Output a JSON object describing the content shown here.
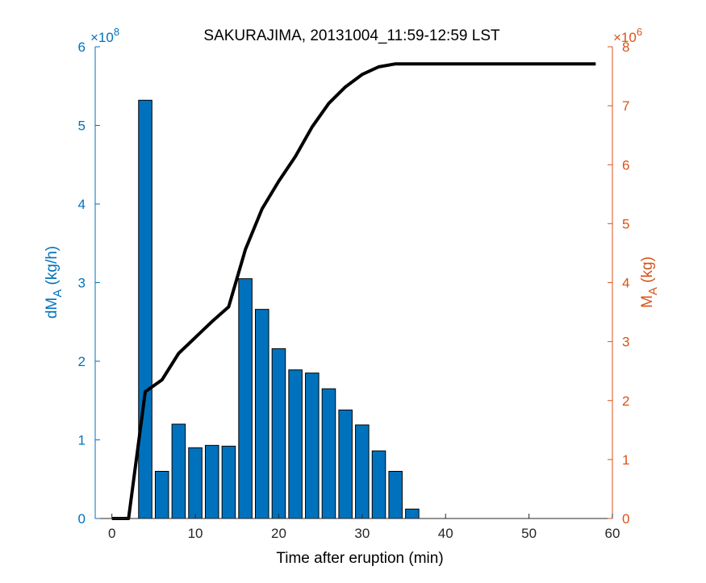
{
  "chart_data": {
    "type": "bar",
    "title": "SAKURAJIMA, 20131004_11:59-12:59 LST",
    "xlabel": "Time after eruption (min)",
    "ylabel_left": {
      "base": "dM",
      "sub": "A",
      "rest": " (kg/h)"
    },
    "ylabel_right": {
      "base": "M",
      "sub": "A",
      "rest": " (kg)"
    },
    "left_exponent": {
      "base": "×10",
      "exp": "8"
    },
    "right_exponent": {
      "base": "×10",
      "exp": "6"
    },
    "xlim": [
      -2,
      60
    ],
    "ylim_left": [
      0,
      6
    ],
    "ylim_right": [
      0,
      8
    ],
    "xticks": [
      0,
      10,
      20,
      30,
      40,
      50,
      60
    ],
    "yticks_left": [
      0,
      1,
      2,
      3,
      4,
      5,
      6
    ],
    "yticks_right": [
      0,
      1,
      2,
      3,
      4,
      5,
      6,
      7,
      8
    ],
    "colors": {
      "bars": "#0072BD",
      "bar_edge": "#000000",
      "line": "#000000",
      "left_axis": "#0072BD",
      "right_axis": "#D95319"
    },
    "bars": {
      "x": [
        0,
        2,
        4,
        6,
        8,
        10,
        12,
        14,
        16,
        18,
        20,
        22,
        24,
        26,
        28,
        30,
        32,
        34,
        36
      ],
      "values": [
        0,
        0,
        5.32,
        0.6,
        1.2,
        0.9,
        0.93,
        0.92,
        3.05,
        2.66,
        2.16,
        1.89,
        1.85,
        1.65,
        1.38,
        1.19,
        0.86,
        0.6,
        0.12
      ]
    },
    "line": {
      "x": [
        0,
        2,
        4,
        6,
        8,
        10,
        12,
        14,
        16,
        18,
        20,
        22,
        24,
        26,
        28,
        30,
        32,
        34,
        36,
        38,
        40,
        42,
        44,
        46,
        48,
        50,
        52,
        54,
        56,
        58
      ],
      "values": [
        0,
        0,
        2.15,
        2.35,
        2.8,
        3.07,
        3.34,
        3.59,
        4.56,
        5.25,
        5.72,
        6.14,
        6.64,
        7.04,
        7.32,
        7.53,
        7.66,
        7.71,
        7.71,
        7.71,
        7.71,
        7.71,
        7.71,
        7.71,
        7.71,
        7.71,
        7.71,
        7.71,
        7.71,
        7.71
      ]
    }
  }
}
